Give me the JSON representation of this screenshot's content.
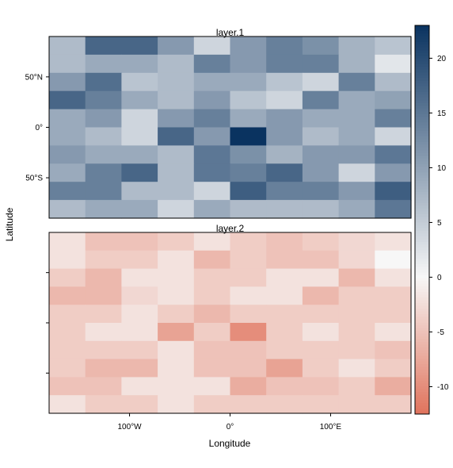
{
  "chart_data": {
    "type": "heatmap",
    "xlabel": "Longitude",
    "ylabel": "Latitude",
    "x_ticks": [
      {
        "value": -100,
        "label": "100°W"
      },
      {
        "value": 0,
        "label": "0°"
      },
      {
        "value": 100,
        "label": "100°E"
      }
    ],
    "y_ticks": [
      {
        "value": 50,
        "label": "50°N"
      },
      {
        "value": 0,
        "label": "0°"
      },
      {
        "value": -50,
        "label": "50°S"
      }
    ],
    "xlim": [
      -180,
      180
    ],
    "ylim": [
      -90,
      90
    ],
    "grid": false,
    "colorbar": {
      "placement": "right",
      "range": [
        -12.5,
        23
      ],
      "ticks": [
        -10,
        -5,
        0,
        5,
        10,
        15,
        20
      ],
      "negative_end_color": "#e0735c",
      "zero_color": "#f7f7f7",
      "positive_end_color": "#0a3360"
    },
    "layers": [
      {
        "name": "layer.1",
        "values": [
          [
            7,
            17,
            17,
            11,
            4,
            11,
            14,
            12,
            8,
            6
          ],
          [
            7,
            9,
            9,
            7,
            14,
            11,
            14,
            14,
            8,
            2
          ],
          [
            11,
            16,
            6,
            7,
            9,
            9,
            6,
            4,
            14,
            7
          ],
          [
            17,
            14,
            9,
            7,
            11,
            6,
            4,
            14,
            9,
            10
          ],
          [
            9,
            11,
            4,
            11,
            14,
            9,
            11,
            9,
            9,
            14
          ],
          [
            9,
            7,
            4,
            17,
            11,
            23,
            11,
            7,
            9,
            4
          ],
          [
            11,
            9,
            9,
            7,
            15,
            12,
            8,
            11,
            11,
            15
          ],
          [
            9,
            14,
            17,
            7,
            15,
            14,
            17,
            11,
            4,
            11
          ],
          [
            14,
            14,
            7,
            7,
            4,
            18,
            14,
            14,
            11,
            18
          ],
          [
            7,
            9,
            9,
            4,
            9,
            7,
            7,
            7,
            9,
            15
          ]
        ]
      },
      {
        "name": "layer.2",
        "values": [
          [
            -2,
            -5,
            -5,
            -4,
            -2,
            -4,
            -5,
            -4,
            -3,
            -2
          ],
          [
            -2,
            -4,
            -4,
            -2,
            -6,
            -4,
            -5,
            -5,
            -3,
            0
          ],
          [
            -4,
            -6,
            -2,
            -2,
            -4,
            -4,
            -2,
            -2,
            -6,
            -2
          ],
          [
            -6,
            -6,
            -3,
            -2,
            -4,
            -2,
            -2,
            -6,
            -4,
            -4
          ],
          [
            -4,
            -4,
            -2,
            -4,
            -6,
            -4,
            -4,
            -4,
            -4,
            -4
          ],
          [
            -4,
            -2,
            -2,
            -8,
            -4,
            -10,
            -4,
            -2,
            -4,
            -2
          ],
          [
            -4,
            -4,
            -4,
            -2,
            -5,
            -5,
            -4,
            -4,
            -4,
            -5
          ],
          [
            -4,
            -6,
            -6,
            -2,
            -5,
            -5,
            -8,
            -4,
            -2,
            -4
          ],
          [
            -5,
            -5,
            -2,
            -2,
            -2,
            -7,
            -5,
            -5,
            -4,
            -7
          ],
          [
            -2,
            -4,
            -4,
            -2,
            -4,
            -4,
            -4,
            -4,
            -4,
            -4
          ]
        ]
      }
    ]
  }
}
